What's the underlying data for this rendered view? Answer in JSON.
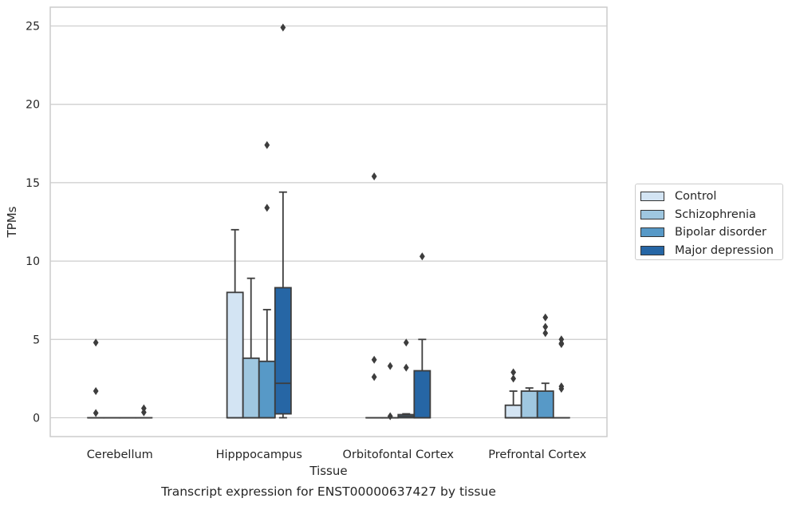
{
  "chart_data": {
    "type": "box",
    "title": "Transcript expression for ENST00000637427 by tissue",
    "xlabel": "Tissue",
    "ylabel": "TPMs",
    "ylim": [
      -1.2,
      26.2
    ],
    "yticks": [
      0,
      5,
      10,
      15,
      20,
      25
    ],
    "grid": "horizontal",
    "legend_position": "right",
    "categories": [
      "Cerebellum",
      "Hipppocampus",
      "Orbitofontal Cortex",
      "Prefrontal Cortex"
    ],
    "series": [
      {
        "name": "Control",
        "color": "#d3e4f3",
        "boxes": [
          {
            "q1": 0,
            "median": 0,
            "q3": 0,
            "whisker_low": 0,
            "whisker_high": 0,
            "outliers": [
              4.8,
              1.7,
              0.3
            ]
          },
          {
            "q1": 0,
            "median": 0,
            "q3": 8.0,
            "whisker_low": 0,
            "whisker_high": 12.0,
            "outliers": []
          },
          {
            "q1": 0,
            "median": 0,
            "q3": 0,
            "whisker_low": 0,
            "whisker_high": 0,
            "outliers": [
              15.4,
              3.7,
              2.6
            ]
          },
          {
            "q1": 0,
            "median": 0,
            "q3": 0.8,
            "whisker_low": 0,
            "whisker_high": 1.7,
            "outliers": [
              2.9,
              2.5
            ]
          }
        ]
      },
      {
        "name": "Schizophrenia",
        "color": "#9fc7e0",
        "boxes": [
          {
            "q1": 0,
            "median": 0,
            "q3": 0,
            "whisker_low": 0,
            "whisker_high": 0,
            "outliers": []
          },
          {
            "q1": 0,
            "median": 0,
            "q3": 3.8,
            "whisker_low": 0,
            "whisker_high": 8.9,
            "outliers": []
          },
          {
            "q1": 0,
            "median": 0,
            "q3": 0,
            "whisker_low": 0,
            "whisker_high": 0,
            "outliers": [
              3.3,
              0.1
            ]
          },
          {
            "q1": 0,
            "median": 0,
            "q3": 1.7,
            "whisker_low": 0,
            "whisker_high": 1.9,
            "outliers": []
          }
        ]
      },
      {
        "name": "Bipolar disorder",
        "color": "#5799c7",
        "boxes": [
          {
            "q1": 0,
            "median": 0,
            "q3": 0,
            "whisker_low": 0,
            "whisker_high": 0,
            "outliers": []
          },
          {
            "q1": 0,
            "median": 0,
            "q3": 3.6,
            "whisker_low": 0,
            "whisker_high": 6.9,
            "outliers": [
              17.4,
              13.4
            ]
          },
          {
            "q1": 0,
            "median": 0.1,
            "q3": 0.2,
            "whisker_low": 0,
            "whisker_high": 0.25,
            "outliers": [
              4.8,
              3.2
            ]
          },
          {
            "q1": 0,
            "median": 0,
            "q3": 1.7,
            "whisker_low": 0,
            "whisker_high": 2.2,
            "outliers": [
              6.4,
              5.8,
              5.4
            ]
          }
        ]
      },
      {
        "name": "Major depression",
        "color": "#2666a5",
        "boxes": [
          {
            "q1": 0,
            "median": 0,
            "q3": 0,
            "whisker_low": 0,
            "whisker_high": 0,
            "outliers": [
              0.6,
              0.35
            ]
          },
          {
            "q1": 0.25,
            "median": 2.2,
            "q3": 8.3,
            "whisker_low": 0,
            "whisker_high": 14.4,
            "outliers": [
              24.9
            ]
          },
          {
            "q1": 0,
            "median": 0,
            "q3": 3.0,
            "whisker_low": 0,
            "whisker_high": 5.0,
            "outliers": [
              10.3
            ]
          },
          {
            "q1": 0,
            "median": 0,
            "q3": 0,
            "whisker_low": 0,
            "whisker_high": 0,
            "outliers": [
              5.0,
              4.75,
              4.7,
              2.0,
              1.85
            ]
          }
        ]
      }
    ]
  }
}
